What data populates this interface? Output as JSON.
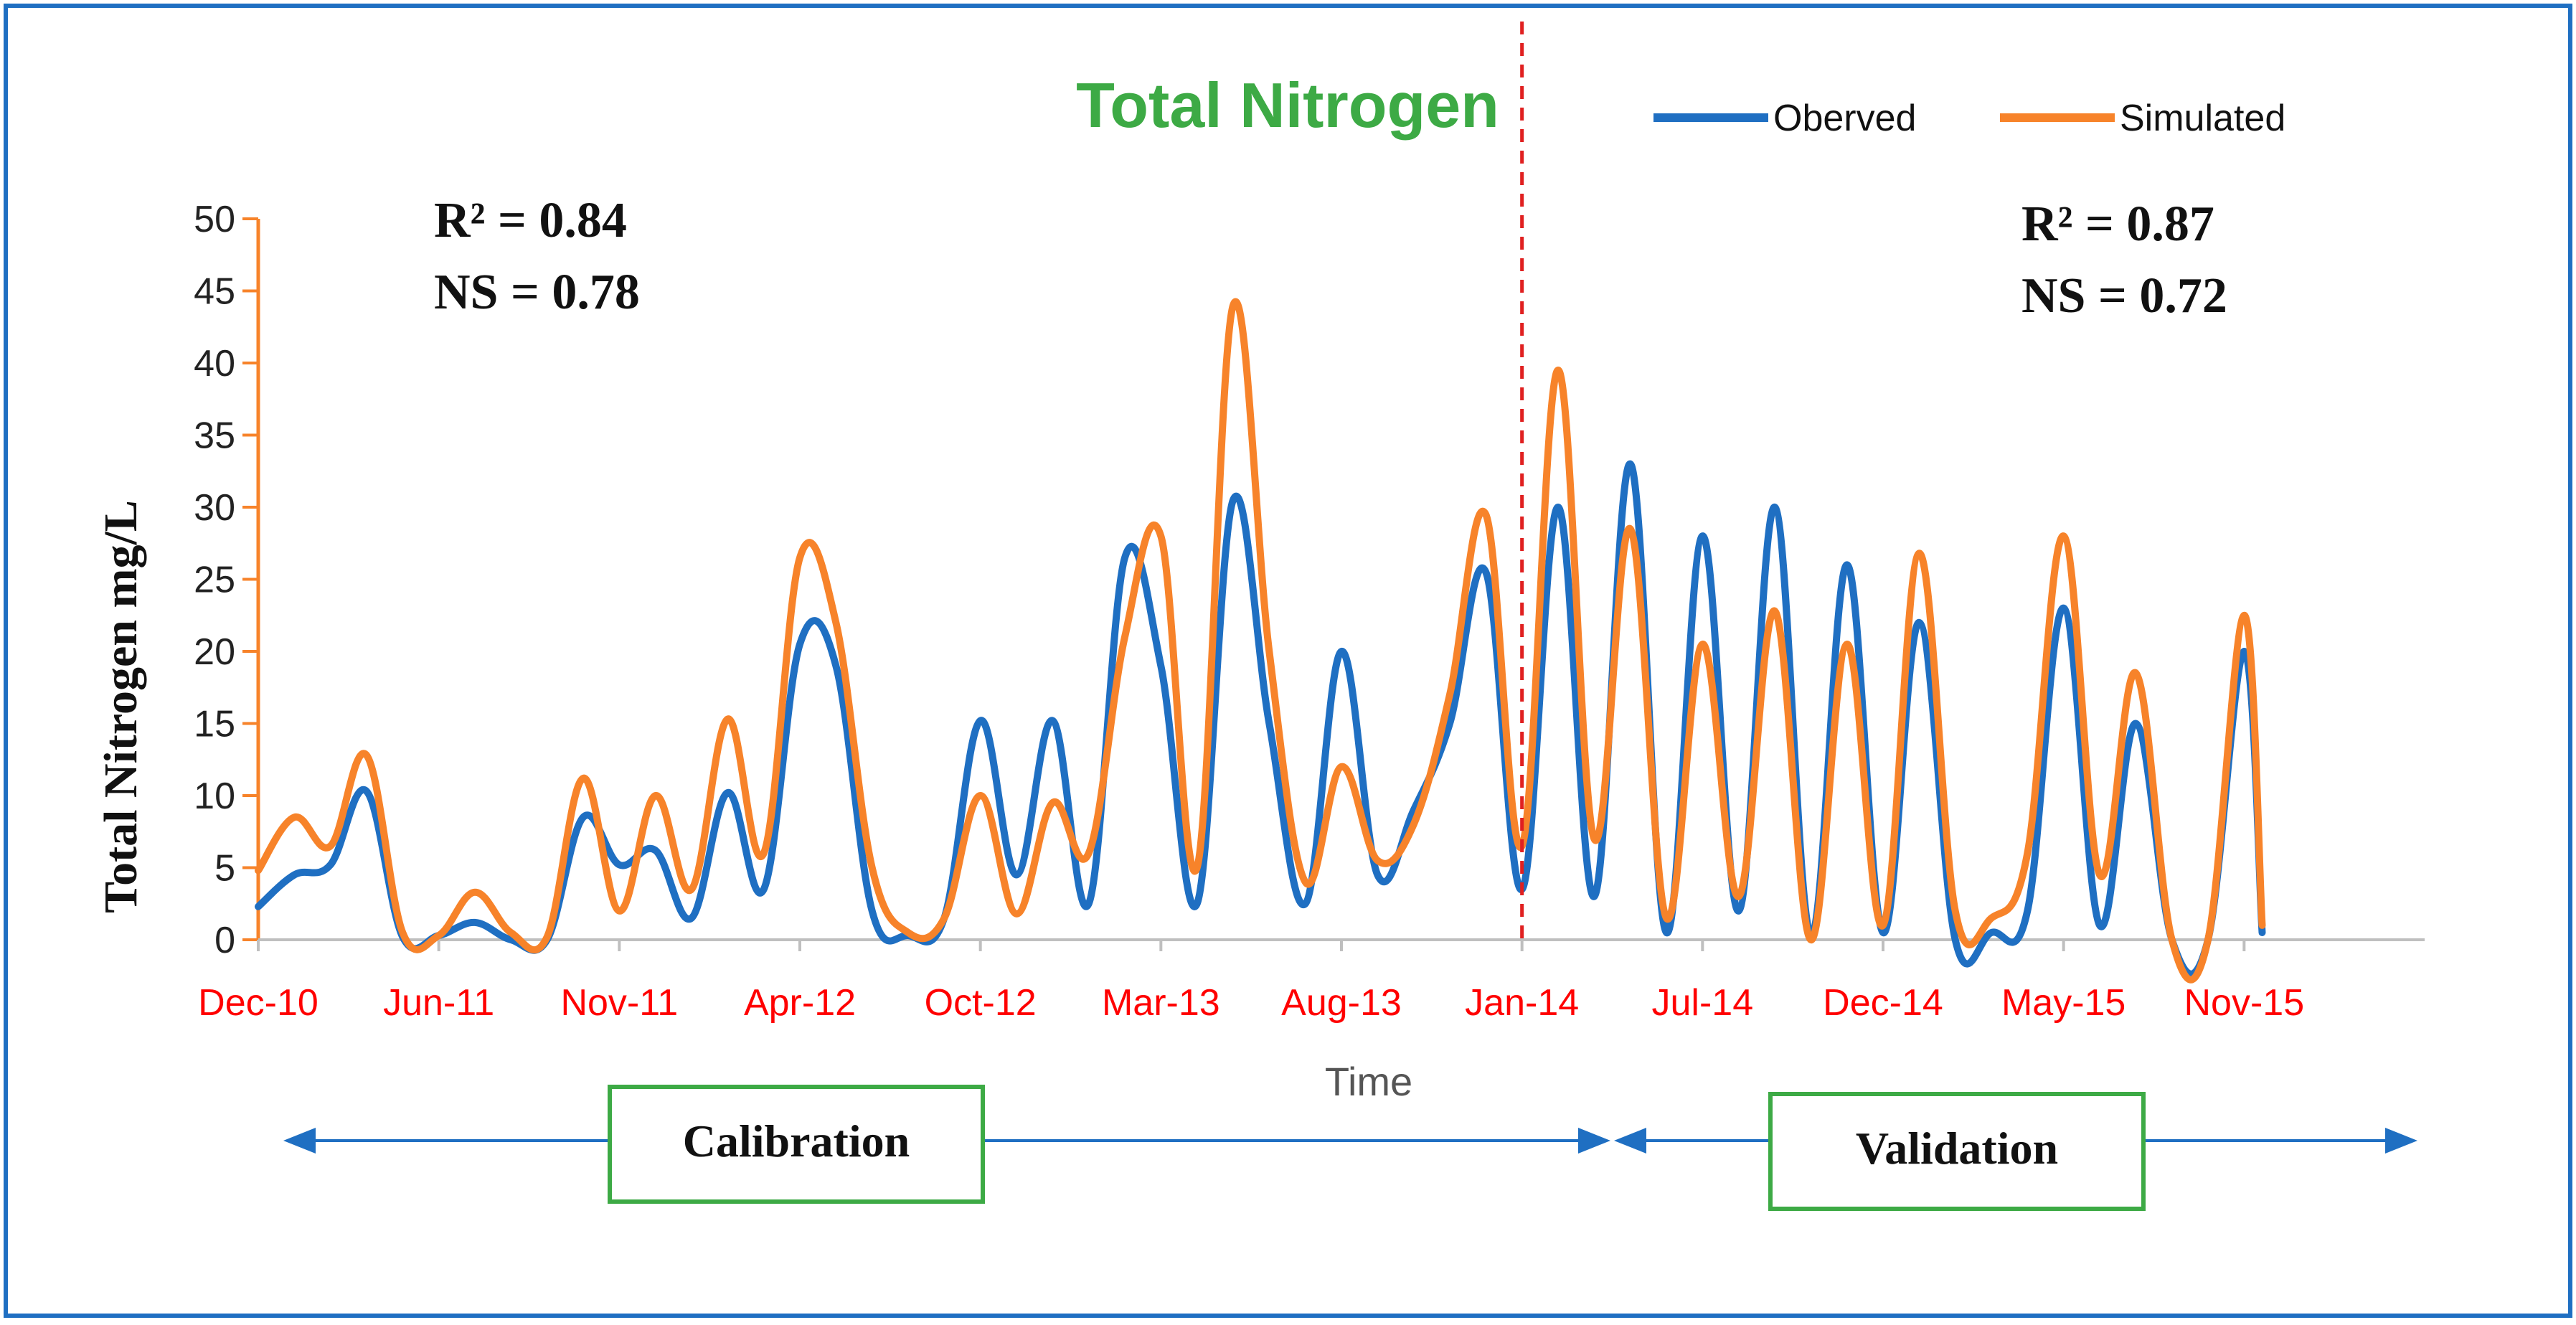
{
  "chart_data": {
    "type": "line",
    "title": "Total Nitrogen",
    "xlabel": "Time",
    "ylabel": "Total Nitrogen mg/L",
    "ylim": [
      0,
      50
    ],
    "yticks": [
      0,
      5,
      10,
      15,
      20,
      25,
      30,
      35,
      40,
      45,
      50
    ],
    "xlim_months": [
      0,
      60
    ],
    "xtick_labels": [
      "Dec-10",
      "Jun-11",
      "Nov-11",
      "Apr-12",
      "Oct-12",
      "Mar-13",
      "Aug-13",
      "Jan-14",
      "Jul-14",
      "Dec-14",
      "May-15",
      "Nov-15"
    ],
    "xtick_months": [
      0,
      5,
      10,
      15,
      20,
      25,
      30,
      35,
      40,
      45,
      50,
      55
    ],
    "split_month": 35,
    "legend": {
      "position": "top-right",
      "entries": [
        "Oberved",
        "Simulated"
      ]
    },
    "series": [
      {
        "name": "Oberved",
        "color": "#1F6FC2",
        "x": [
          0,
          1,
          2,
          3,
          4,
          5,
          6,
          7,
          8,
          9,
          10,
          11,
          12,
          13,
          14,
          15,
          16,
          17,
          18,
          19,
          20,
          21,
          22,
          23,
          24,
          25,
          26,
          27,
          28,
          29,
          30,
          31,
          32,
          33,
          34,
          35,
          36,
          37,
          38,
          39,
          40,
          41,
          42,
          43,
          44,
          45,
          46,
          47,
          48,
          49,
          50,
          51,
          52,
          53,
          54,
          55,
          55.5
        ],
        "values": [
          2.3,
          4.5,
          5.2,
          10.3,
          0.2,
          0.3,
          1.2,
          0,
          0,
          8.5,
          5.2,
          6.2,
          1.5,
          10.2,
          3.5,
          20.5,
          19,
          2,
          0.3,
          1.5,
          15.2,
          4.5,
          15.2,
          2.5,
          26.5,
          19,
          2.5,
          30.5,
          15,
          2.5,
          20,
          4.5,
          9,
          15,
          25.5,
          3.5,
          30,
          3,
          33,
          0.5,
          28,
          2,
          30,
          0.3,
          26,
          0.5,
          22,
          0,
          0.5,
          2,
          23,
          1,
          15,
          0,
          0,
          20,
          0.5
        ]
      },
      {
        "name": "Simulated",
        "color": "#F7832A",
        "x": [
          0,
          1,
          2,
          3,
          4,
          5,
          6,
          7,
          8,
          9,
          10,
          11,
          12,
          13,
          14,
          15,
          16,
          17,
          18,
          19,
          20,
          21,
          22,
          23,
          24,
          25,
          26,
          27,
          28,
          29,
          30,
          31,
          32,
          33,
          34,
          35,
          36,
          37,
          38,
          39,
          40,
          41,
          42,
          43,
          44,
          45,
          46,
          47,
          48,
          49,
          50,
          51,
          52,
          53,
          54,
          55,
          55.5
        ],
        "values": [
          4.8,
          8.5,
          6.5,
          12.8,
          0.5,
          0.3,
          3.3,
          0.5,
          0.2,
          11.2,
          2,
          10,
          3.5,
          15.3,
          6,
          26.5,
          22,
          5,
          0.5,
          1.5,
          10,
          1.8,
          9.5,
          6,
          21,
          28,
          5,
          44,
          20,
          4,
          12,
          5.5,
          8,
          17,
          29.5,
          6.5,
          39.5,
          7,
          28.5,
          1.5,
          20.5,
          3,
          22.8,
          0,
          20.5,
          1,
          26.8,
          2,
          1.5,
          6,
          28,
          4.5,
          18.5,
          0,
          0,
          22.5,
          1
        ]
      }
    ],
    "annotations": {
      "calibration_r2": "R² = 0.84",
      "calibration_ns": "NS = 0.78",
      "validation_r2": "R² = 0.87",
      "validation_ns": "NS = 0.72",
      "calibration_label": "Calibration",
      "validation_label": "Validation"
    },
    "colors": {
      "title": "#3DAA45",
      "axis_y": "#F7832A",
      "xtick_text": "#FF0000",
      "split_line": "#E02020",
      "arrows": "#1F6FC2",
      "box_border": "#3DAA45",
      "frame": "#1F6FC2"
    }
  }
}
